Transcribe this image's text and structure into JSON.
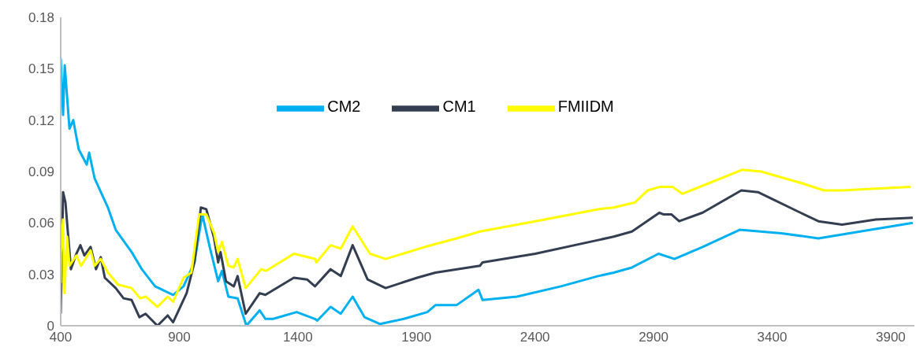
{
  "chart_data": {
    "type": "line",
    "xlim": [
      400,
      4000
    ],
    "xticks": [
      400,
      900,
      1400,
      1900,
      2400,
      2900,
      3400,
      3900
    ],
    "ylim": [
      0,
      0.18
    ],
    "yticks": [
      0,
      0.03,
      0.06,
      0.09,
      0.12,
      0.15,
      0.18
    ],
    "legend": "top",
    "series": [
      {
        "name": "CM2",
        "color": "#00b0f0",
        "x": [
          400,
          410,
          417,
          437,
          453,
          476,
          510,
          520,
          543,
          599,
          632,
          699,
          742,
          798,
          874,
          918,
          964,
          997,
          1030,
          1064,
          1080,
          1107,
          1146,
          1183,
          1239,
          1263,
          1296,
          1395,
          1472,
          1482,
          1538,
          1581,
          1631,
          1681,
          1747,
          1847,
          1946,
          1980,
          2069,
          2162,
          2179,
          2324,
          2510,
          2666,
          2732,
          2809,
          2921,
          2988,
          3107,
          3263,
          3439,
          3595,
          3771,
          3993
        ],
        "values": [
          0.156,
          0.123,
          0.152,
          0.115,
          0.12,
          0.103,
          0.094,
          0.101,
          0.086,
          0.069,
          0.056,
          0.043,
          0.033,
          0.023,
          0.018,
          0.023,
          0.037,
          0.065,
          0.045,
          0.026,
          0.032,
          0.017,
          0.016,
          0.0,
          0.009,
          0.004,
          0.004,
          0.008,
          0.004,
          0.003,
          0.011,
          0.007,
          0.017,
          0.005,
          0.001,
          0.004,
          0.008,
          0.012,
          0.012,
          0.021,
          0.015,
          0.017,
          0.023,
          0.029,
          0.031,
          0.034,
          0.042,
          0.039,
          0.046,
          0.056,
          0.054,
          0.051,
          0.055,
          0.06
        ]
      },
      {
        "name": "CM1",
        "color": "#333f50",
        "x": [
          400,
          410,
          420,
          443,
          466,
          483,
          500,
          526,
          549,
          569,
          586,
          632,
          665,
          699,
          732,
          758,
          808,
          851,
          874,
          931,
          964,
          991,
          1014,
          1047,
          1064,
          1074,
          1097,
          1130,
          1146,
          1180,
          1239,
          1263,
          1383,
          1439,
          1472,
          1538,
          1581,
          1631,
          1694,
          1770,
          1903,
          1980,
          2168,
          2179,
          2401,
          2666,
          2732,
          2809,
          2925,
          2941,
          2975,
          3008,
          3107,
          3270,
          3340,
          3519,
          3595,
          3695,
          3837,
          3993
        ],
        "values": [
          0.007,
          0.078,
          0.072,
          0.033,
          0.042,
          0.047,
          0.041,
          0.046,
          0.033,
          0.04,
          0.028,
          0.022,
          0.016,
          0.015,
          0.005,
          0.007,
          0.0,
          0.006,
          0.002,
          0.019,
          0.037,
          0.069,
          0.068,
          0.051,
          0.037,
          0.043,
          0.026,
          0.023,
          0.029,
          0.007,
          0.019,
          0.018,
          0.028,
          0.027,
          0.023,
          0.033,
          0.029,
          0.047,
          0.027,
          0.022,
          0.028,
          0.031,
          0.035,
          0.037,
          0.042,
          0.05,
          0.052,
          0.055,
          0.066,
          0.065,
          0.065,
          0.061,
          0.066,
          0.079,
          0.078,
          0.066,
          0.061,
          0.059,
          0.062,
          0.063
        ]
      },
      {
        "name": "FMIIDM",
        "color": "#ffff00",
        "x": [
          400,
          401,
          410,
          416,
          427,
          437,
          466,
          486,
          526,
          543,
          569,
          599,
          642,
          699,
          735,
          758,
          808,
          851,
          874,
          918,
          951,
          984,
          1014,
          1047,
          1064,
          1080,
          1107,
          1130,
          1146,
          1180,
          1246,
          1266,
          1383,
          1472,
          1478,
          1538,
          1581,
          1631,
          1704,
          1770,
          1936,
          2069,
          2168,
          2401,
          2666,
          2732,
          2822,
          2875,
          2925,
          2981,
          3021,
          3130,
          3273,
          3353,
          3529,
          3618,
          3695,
          3837,
          3983
        ],
        "values": [
          0.025,
          0.043,
          0.062,
          0.019,
          0.052,
          0.035,
          0.041,
          0.035,
          0.044,
          0.035,
          0.039,
          0.031,
          0.024,
          0.022,
          0.016,
          0.017,
          0.011,
          0.017,
          0.014,
          0.028,
          0.031,
          0.065,
          0.065,
          0.054,
          0.043,
          0.049,
          0.035,
          0.034,
          0.039,
          0.022,
          0.033,
          0.032,
          0.042,
          0.039,
          0.037,
          0.047,
          0.045,
          0.058,
          0.042,
          0.039,
          0.046,
          0.051,
          0.055,
          0.061,
          0.068,
          0.069,
          0.072,
          0.079,
          0.081,
          0.081,
          0.077,
          0.083,
          0.091,
          0.09,
          0.083,
          0.079,
          0.079,
          0.08,
          0.081
        ]
      }
    ]
  }
}
